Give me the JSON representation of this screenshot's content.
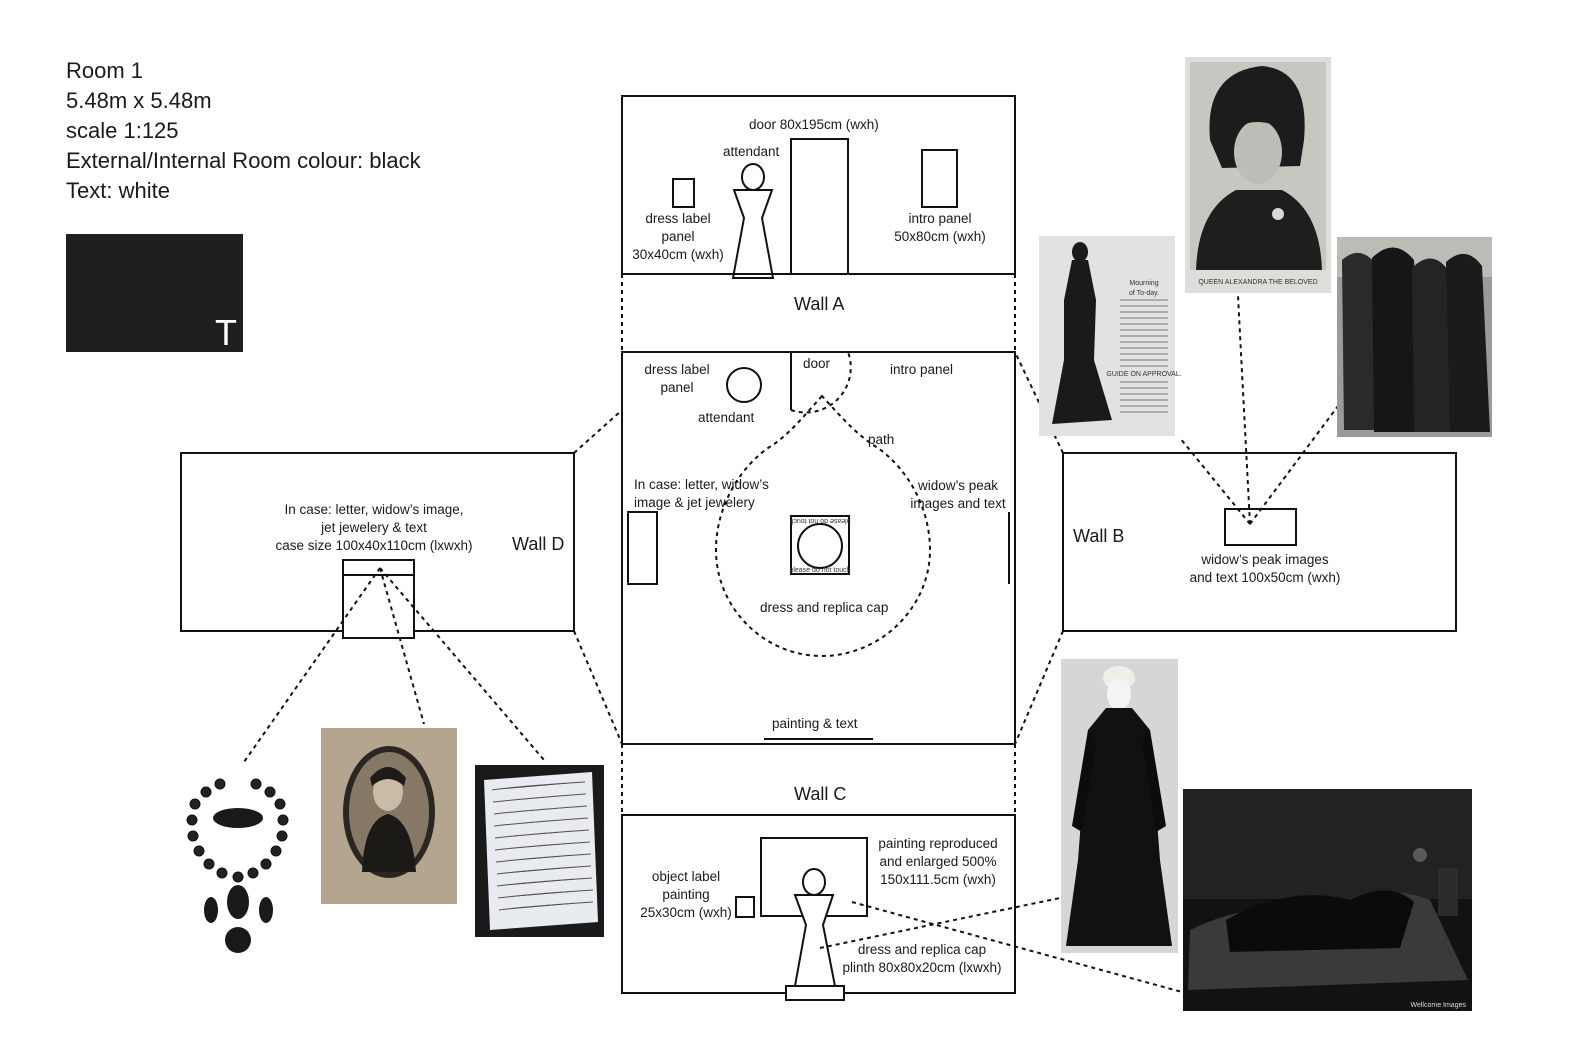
{
  "room_info": {
    "name": "Room 1",
    "size": "5.48m x 5.48m",
    "scale": "scale 1:125",
    "room_colour": "External/Internal Room colour: black",
    "text_colour": "Text: white"
  },
  "swatch": {
    "letter": "T",
    "color": "#1f1f1f"
  },
  "walls": {
    "a": "Wall A",
    "b": "Wall B",
    "c": "Wall C",
    "d": "Wall D"
  },
  "wall_a": {
    "door": "door 80x195cm (wxh)",
    "attendant": "attendant",
    "dress_label": [
      "dress label",
      "panel",
      "30x40cm (wxh)"
    ],
    "intro_panel": [
      "intro panel",
      "50x80cm (wxh)"
    ]
  },
  "floor_plan": {
    "dress_label": [
      "dress label",
      "panel"
    ],
    "attendant": "attendant",
    "door": "door",
    "intro_panel": "intro panel",
    "path": "path",
    "in_case": [
      "In case: letter, widow’s",
      "image & jet jewelery"
    ],
    "widows_peak": [
      "widow’s peak",
      "images and text"
    ],
    "plinth_top": "please do not touch",
    "plinth_bottom": "please do not touch",
    "dress": "dress and replica cap",
    "painting": "painting & text"
  },
  "wall_b": {
    "panel": [
      "widow’s peak images",
      "and text 100x50cm (wxh)"
    ]
  },
  "wall_c": {
    "object_label": [
      "object label",
      "painting",
      "25x30cm (wxh)"
    ],
    "painting": [
      "painting reproduced",
      "and enlarged 500%",
      "150x111.5cm (wxh)"
    ],
    "dress": [
      "dress and replica cap",
      "plinth 80x80x20cm (lxwxh)"
    ]
  },
  "wall_d": {
    "case": [
      "In case: letter, widow’s image,",
      "jet jewelery & text",
      "case size 100x40x110cm (lxwxh)"
    ]
  },
  "photos": {
    "mourning_title": [
      "Mourning",
      "of To-day."
    ],
    "guide": "GUIDE ON APPROVAL.",
    "queen_caption": "QUEEN ALEXANDRA THE BELOVED",
    "wellcome": "Wellcome Images"
  }
}
